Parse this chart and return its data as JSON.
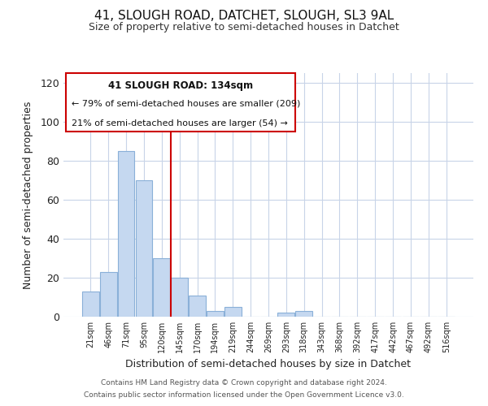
{
  "title": "41, SLOUGH ROAD, DATCHET, SLOUGH, SL3 9AL",
  "subtitle": "Size of property relative to semi-detached houses in Datchet",
  "xlabel": "Distribution of semi-detached houses by size in Datchet",
  "ylabel": "Number of semi-detached properties",
  "footer_line1": "Contains HM Land Registry data © Crown copyright and database right 2024.",
  "footer_line2": "Contains public sector information licensed under the Open Government Licence v3.0.",
  "bar_labels": [
    "21sqm",
    "46sqm",
    "71sqm",
    "95sqm",
    "120sqm",
    "145sqm",
    "170sqm",
    "194sqm",
    "219sqm",
    "244sqm",
    "269sqm",
    "293sqm",
    "318sqm",
    "343sqm",
    "368sqm",
    "392sqm",
    "417sqm",
    "442sqm",
    "467sqm",
    "492sqm",
    "516sqm"
  ],
  "bar_values": [
    13,
    23,
    85,
    70,
    30,
    20,
    11,
    3,
    5,
    0,
    0,
    2,
    3,
    0,
    0,
    0,
    0,
    0,
    0,
    0,
    0
  ],
  "bar_color": "#c5d8f0",
  "bar_edge_color": "#8ab0d8",
  "vline_color": "#cc0000",
  "vline_x_index": 4.5,
  "ylim_max": 125,
  "yticks": [
    0,
    20,
    40,
    60,
    80,
    100,
    120
  ],
  "annotation_title": "41 SLOUGH ROAD: 134sqm",
  "annotation_line1": "← 79% of semi-detached houses are smaller (209)",
  "annotation_line2": "21% of semi-detached houses are larger (54) →",
  "background_color": "#ffffff",
  "grid_color": "#c8d4e8",
  "title_fontsize": 11,
  "subtitle_fontsize": 9
}
